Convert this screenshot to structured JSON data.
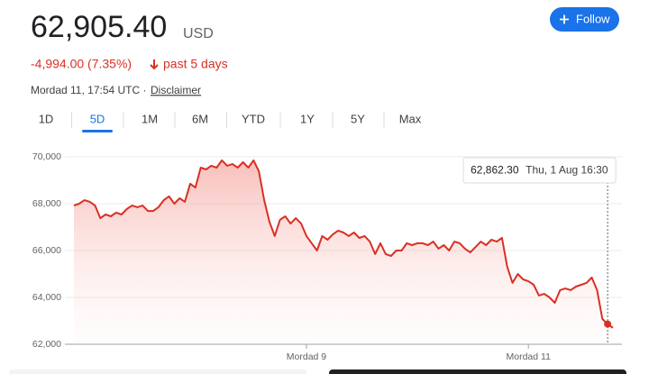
{
  "header": {
    "price": "62,905.40",
    "currency": "USD",
    "change": "-4,994.00 (7.35%)",
    "period": "past 5 days",
    "timestamp": "Mordad 11, 17:54 UTC ·",
    "disclaimer": "Disclaimer",
    "follow": "Follow"
  },
  "tabs": {
    "items": [
      "1D",
      "5D",
      "1M",
      "6M",
      "YTD",
      "1Y",
      "5Y",
      "Max"
    ],
    "selected": "5D"
  },
  "chart_data": {
    "type": "line",
    "color": "#d93025",
    "values": [
      67920,
      68000,
      68150,
      68080,
      67920,
      67380,
      67540,
      67460,
      67620,
      67540,
      67770,
      67920,
      67850,
      67920,
      67690,
      67690,
      67850,
      68150,
      68310,
      68000,
      68230,
      68080,
      68850,
      68690,
      69540,
      69460,
      69620,
      69540,
      69850,
      69620,
      69690,
      69540,
      69770,
      69540,
      69850,
      69380,
      68150,
      67230,
      66620,
      67310,
      67460,
      67150,
      67380,
      67150,
      66620,
      66310,
      66000,
      66620,
      66460,
      66690,
      66850,
      66770,
      66620,
      66770,
      66540,
      66620,
      66380,
      65850,
      66310,
      65850,
      65770,
      66000,
      66000,
      66310,
      66230,
      66310,
      66310,
      66230,
      66380,
      66080,
      66230,
      66000,
      66380,
      66310,
      66080,
      65920,
      66150,
      66380,
      66230,
      66460,
      66380,
      66540,
      65310,
      64620,
      65000,
      64770,
      64690,
      64540,
      64080,
      64150,
      64000,
      63770,
      64310,
      64380,
      64310,
      64460,
      64540,
      64620,
      64850,
      64310,
      63080,
      62862.3,
      62700
    ],
    "xlim": [
      0,
      102
    ],
    "xticks": [
      {
        "value": 44,
        "label": "Mordad 9"
      },
      {
        "value": 86,
        "label": "Mordad 11"
      }
    ],
    "ylim": [
      62000,
      70000
    ],
    "yticks": [
      {
        "value": 62000,
        "label": "62,000"
      },
      {
        "value": 64000,
        "label": "64,000"
      },
      {
        "value": 66000,
        "label": "66,000"
      },
      {
        "value": 68000,
        "label": "68,000"
      },
      {
        "value": 70000,
        "label": "70,000"
      }
    ],
    "grid": true,
    "tooltip": {
      "value": 62862.3,
      "label": "62,862.30",
      "date": "Thu, 1 Aug 16:30"
    }
  }
}
